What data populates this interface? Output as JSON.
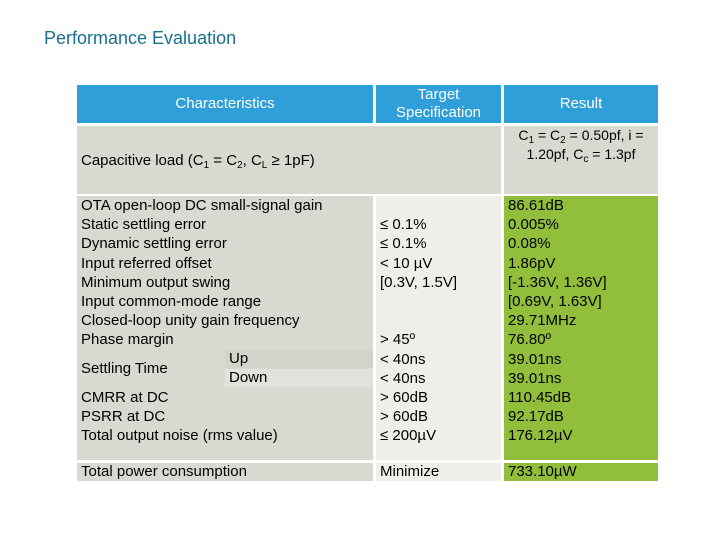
{
  "slide": {
    "title": "Performance Evaluation"
  },
  "table": {
    "headers": {
      "characteristics": "Characteristics",
      "target_line1": "Target",
      "target_line2": "Specification",
      "result": "Result"
    },
    "condition": {
      "label_prefix": "Capacitive load (C",
      "label_sub1": "1",
      "label_mid1": " = C",
      "label_sub2": "2",
      "label_mid2": ", C",
      "label_sub3": "L",
      "label_suffix": " ≥ 1pF)",
      "result_line1_a": "C",
      "result_line1_sub1": "1",
      "result_line1_b": " = C",
      "result_line1_sub2": "2",
      "result_line1_c": " = 0.50pf, i =",
      "result_line2_a": "1.20pf, C",
      "result_line2_sub": "c",
      "result_line2_b": " = 1.3pf"
    },
    "rows": [
      {
        "characteristic": "OTA open-loop DC small-signal gain",
        "target": "",
        "result": "86.61dB"
      },
      {
        "characteristic": "Static settling error",
        "target": "≤ 0.1%",
        "result": "0.005%"
      },
      {
        "characteristic": "Dynamic settling error",
        "target": "≤ 0.1%",
        "result": "0.08%"
      },
      {
        "characteristic": "Input referred offset",
        "target": "< 10 µV",
        "result": "1.86pV"
      },
      {
        "characteristic": "Minimum output swing",
        "target": "[0.3V, 1.5V]",
        "result": "[-1.36V, 1.36V]"
      },
      {
        "characteristic": "Input common-mode range",
        "target": "",
        "result": "[0.69V, 1.63V]"
      },
      {
        "characteristic": "Closed-loop unity gain frequency",
        "target": "",
        "result": "29.71MHz"
      },
      {
        "characteristic": "Phase margin",
        "target": "> 45º",
        "result": "76.80º"
      },
      {
        "characteristic": "",
        "target": "< 40ns",
        "result": "39.01ns"
      },
      {
        "characteristic": "",
        "target": "< 40ns",
        "result": "39.01ns"
      },
      {
        "characteristic": "CMRR at DC",
        "target": "> 60dB",
        "result": "110.45dB"
      },
      {
        "characteristic": "PSRR at DC",
        "target": "> 60dB",
        "result": "92.17dB"
      },
      {
        "characteristic": "Total output noise (rms value)",
        "target": "≤ 200µV",
        "result": "176.12µV"
      }
    ],
    "settling": {
      "label": "Settling Time",
      "up": "Up",
      "down": "Down"
    },
    "power": {
      "characteristic": "Total power consumption",
      "target": "Minimize",
      "result": "733.10µW"
    }
  }
}
